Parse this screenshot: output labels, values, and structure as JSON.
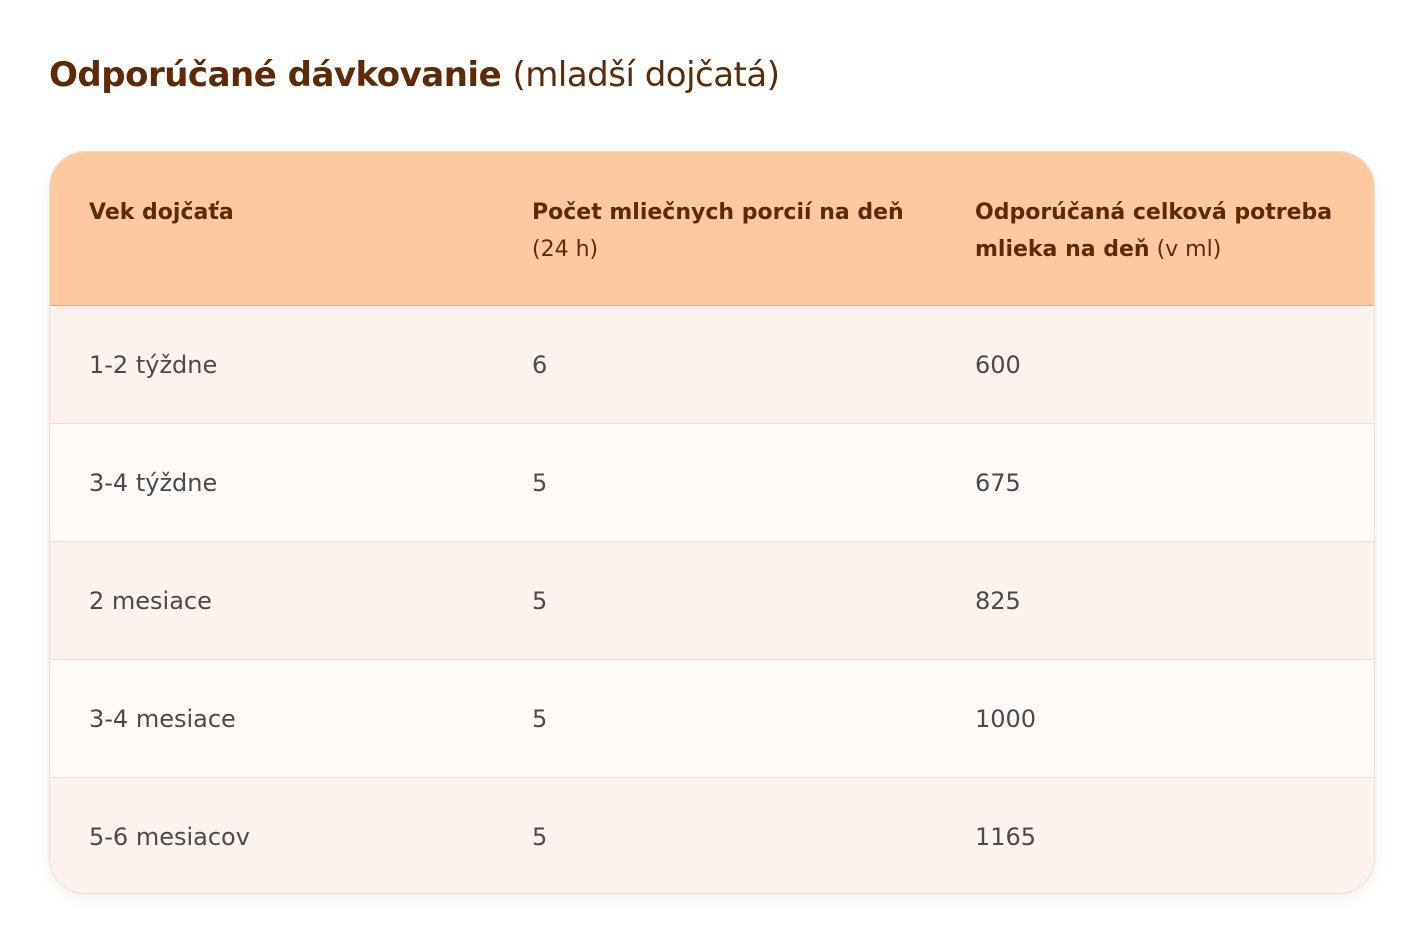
{
  "title": {
    "bold": "Odporúčané dávkovanie",
    "light": "(mladší dojčatá)"
  },
  "table": {
    "headers": [
      {
        "bold": "Vek dojčaťa",
        "light": ""
      },
      {
        "bold": "Počet mliečnych porcií na deň",
        "light": "(24 h)"
      },
      {
        "bold": "Odporúčaná celková potreba mlieka na deň",
        "light": "(v ml)"
      }
    ],
    "rows": [
      [
        "1-2 týždne",
        "6",
        "600"
      ],
      [
        "3-4 týždne",
        "5",
        "675"
      ],
      [
        "2 mesiace",
        "5",
        "825"
      ],
      [
        "3-4 mesiace",
        "5",
        "1000"
      ],
      [
        "5-6 mesiacov",
        "5",
        "1165"
      ]
    ]
  },
  "colors": {
    "title": "#5e2a06",
    "header_background": "#ffc9a0",
    "row_odd": "#fcf3ef",
    "row_even": "#fefaf8",
    "cell_text": "#4a4a4a"
  }
}
